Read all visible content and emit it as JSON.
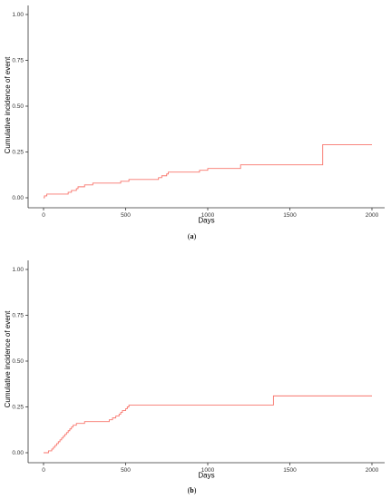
{
  "figure": {
    "line_color": "#f8766d",
    "axis_color": "#333333"
  },
  "chart_data": [
    {
      "type": "line",
      "step": true,
      "caption": "(a)",
      "caption_letter": "a",
      "xlabel": "Days",
      "ylabel": "Cumulative incidence of event",
      "xlim": [
        0,
        2000
      ],
      "ylim": [
        0,
        1
      ],
      "xticks": [
        0,
        500,
        1000,
        1500,
        2000
      ],
      "yticks": [
        0,
        0.25,
        0.5,
        0.75,
        1
      ],
      "xtick_labels": [
        "0",
        "500",
        "1000",
        "1500",
        "2000"
      ],
      "ytick_labels": [
        "0.00",
        "0.25",
        "0.50",
        "0.75",
        "1.00"
      ],
      "grid": false,
      "legend": "none",
      "series": [
        {
          "x": [
            0,
            5,
            20,
            150,
            170,
            200,
            210,
            250,
            300,
            470,
            520,
            700,
            720,
            750,
            760,
            950,
            1000,
            1200,
            1700,
            2000
          ],
          "y": [
            0,
            0.01,
            0.02,
            0.03,
            0.04,
            0.05,
            0.06,
            0.07,
            0.08,
            0.09,
            0.1,
            0.11,
            0.12,
            0.13,
            0.14,
            0.15,
            0.16,
            0.18,
            0.29,
            0.29
          ]
        }
      ]
    },
    {
      "type": "line",
      "step": true,
      "caption": "(b)",
      "caption_letter": "b",
      "xlabel": "Days",
      "ylabel": "Cumulative incidence of event",
      "xlim": [
        0,
        2000
      ],
      "ylim": [
        0,
        1
      ],
      "xticks": [
        0,
        500,
        1000,
        1500,
        2000
      ],
      "yticks": [
        0,
        0.25,
        0.5,
        0.75,
        1
      ],
      "xtick_labels": [
        "0",
        "500",
        "1000",
        "1500",
        "2000"
      ],
      "ytick_labels": [
        "0.00",
        "0.25",
        "0.50",
        "0.75",
        "1.00"
      ],
      "grid": false,
      "legend": "none",
      "series": [
        {
          "x": [
            0,
            30,
            50,
            60,
            70,
            80,
            90,
            100,
            110,
            120,
            130,
            140,
            150,
            160,
            170,
            180,
            190,
            200,
            220,
            250,
            290,
            400,
            420,
            440,
            460,
            470,
            480,
            500,
            510,
            520,
            1400,
            2000
          ],
          "y": [
            0,
            0.01,
            0.02,
            0.03,
            0.04,
            0.05,
            0.06,
            0.07,
            0.08,
            0.09,
            0.1,
            0.11,
            0.12,
            0.13,
            0.14,
            0.15,
            0.15,
            0.16,
            0.16,
            0.17,
            0.17,
            0.18,
            0.19,
            0.2,
            0.21,
            0.22,
            0.23,
            0.24,
            0.25,
            0.26,
            0.31,
            0.31
          ]
        }
      ]
    }
  ]
}
